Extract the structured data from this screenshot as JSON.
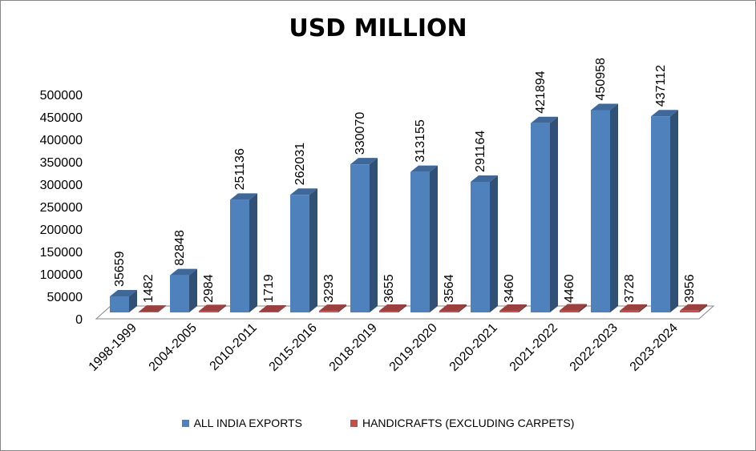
{
  "chart_data": {
    "type": "bar",
    "title": "USD MILLION",
    "categories": [
      "1998-1999",
      "2004-2005",
      "2010-2011",
      "2015-2016",
      "2018-2019",
      "2019-2020",
      "2020-2021",
      "2021-2022",
      "2022-2023",
      "2023-2024"
    ],
    "series": [
      {
        "name": "ALL INDIA EXPORTS",
        "values": [
          35659,
          82848,
          251136,
          262031,
          330070,
          313155,
          291164,
          421894,
          450958,
          437112
        ],
        "color": "#4F81BD"
      },
      {
        "name": "HANDICRAFTS (EXCLUDING CARPETS)",
        "values": [
          1482,
          2984,
          1719,
          3293,
          3655,
          3564,
          3460,
          4460,
          3728,
          3956
        ],
        "color": "#C0504D"
      }
    ],
    "ylim": [
      0,
      500000
    ],
    "yticks": [
      "0",
      "50000",
      "100000",
      "150000",
      "200000",
      "250000",
      "300000",
      "350000",
      "400000",
      "450000",
      "500000"
    ],
    "grid": false,
    "legend_position": "bottom"
  }
}
